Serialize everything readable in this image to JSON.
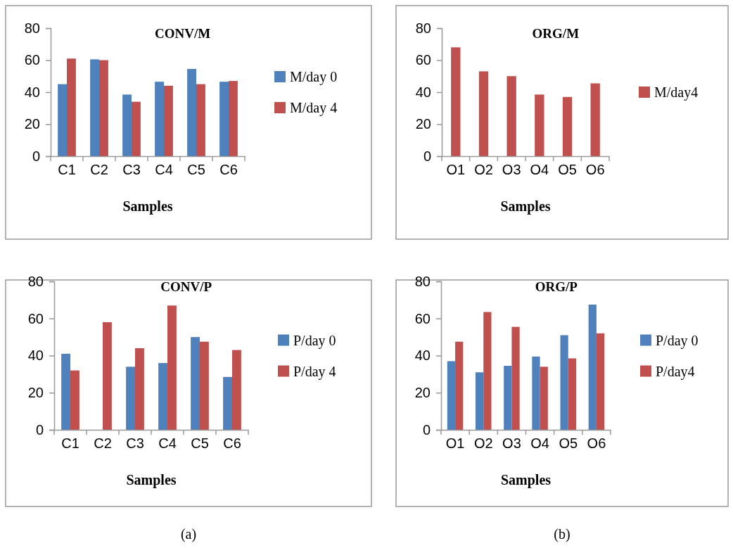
{
  "chart_data": [
    {
      "type": "bar",
      "title": "CONV/M",
      "xlabel": "Samples",
      "categories": [
        "C1",
        "C2",
        "C3",
        "C4",
        "C5",
        "C6"
      ],
      "ylim": [
        0,
        80
      ],
      "yticks": [
        0,
        20,
        40,
        60,
        80
      ],
      "legend": "right",
      "series": [
        {
          "name": "M/day 0",
          "color": "#4f81bd",
          "values": [
            45,
            60.5,
            38.5,
            46.5,
            54.5,
            46.5
          ]
        },
        {
          "name": "M/day 4",
          "color": "#c0504d",
          "values": [
            61,
            60,
            34,
            44,
            45,
            47
          ]
        }
      ]
    },
    {
      "type": "bar",
      "title": "ORG/M",
      "xlabel": "Samples",
      "categories": [
        "O1",
        "O2",
        "O3",
        "O4",
        "O5",
        "O6"
      ],
      "ylim": [
        0,
        80
      ],
      "yticks": [
        0,
        20,
        40,
        60,
        80
      ],
      "legend": "right",
      "series": [
        {
          "name": "M/day4",
          "color": "#c0504d",
          "values": [
            68,
            53,
            50,
            38.5,
            37,
            45.5
          ]
        }
      ]
    },
    {
      "type": "bar",
      "title": "CONV/P",
      "xlabel": "Samples",
      "annotations": [
        "(a)"
      ],
      "categories": [
        "C1",
        "C2",
        "C3",
        "C4",
        "C5",
        "C6"
      ],
      "ylim": [
        0,
        80
      ],
      "yticks": [
        0,
        20,
        40,
        60,
        80
      ],
      "legend": "right",
      "series": [
        {
          "name": "P/day 0",
          "color": "#4f81bd",
          "values": [
            41,
            null,
            34,
            36,
            50,
            28.5
          ]
        },
        {
          "name": "P/day 4",
          "color": "#c0504d",
          "values": [
            32,
            58,
            44,
            67,
            47.5,
            43
          ]
        }
      ]
    },
    {
      "type": "bar",
      "title": "ORG/P",
      "xlabel": "Samples",
      "annotations": [
        "(b)"
      ],
      "categories": [
        "O1",
        "O2",
        "O3",
        "O4",
        "O5",
        "O6"
      ],
      "ylim": [
        0,
        80
      ],
      "yticks": [
        0,
        20,
        40,
        60,
        80
      ],
      "legend": "right",
      "series": [
        {
          "name": "P/day 0",
          "color": "#4f81bd",
          "values": [
            37,
            31,
            34.5,
            39.5,
            51,
            67.5
          ]
        },
        {
          "name": "P/day4",
          "color": "#c0504d",
          "values": [
            47.5,
            63.5,
            55.5,
            34,
            38.5,
            52
          ]
        }
      ]
    }
  ]
}
